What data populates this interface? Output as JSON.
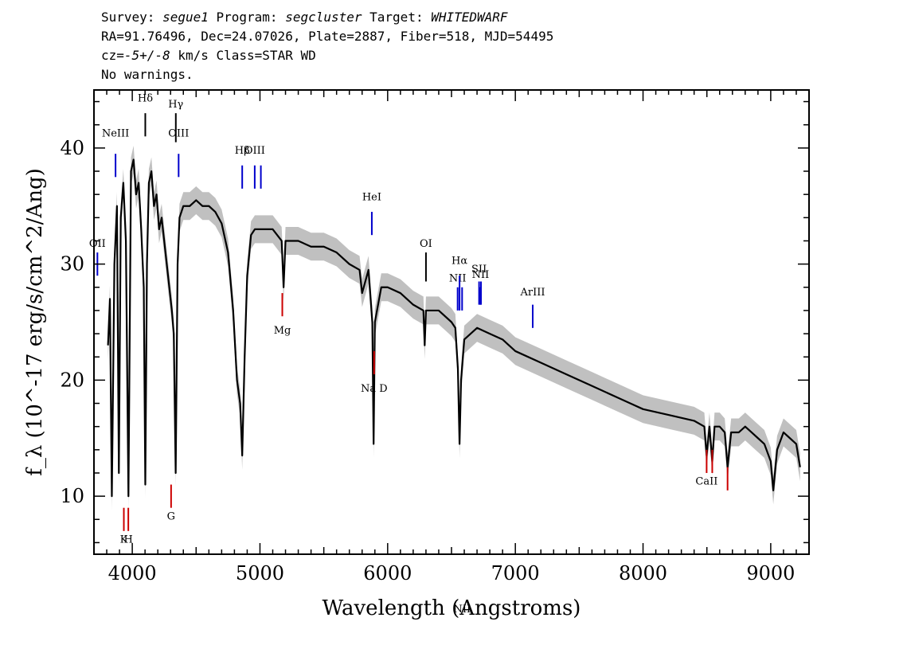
{
  "header": {
    "line1": [
      {
        "t": "Survey: ",
        "i": false
      },
      {
        "t": "segue1",
        "i": true
      },
      {
        "t": " Program: ",
        "i": false
      },
      {
        "t": "segcluster",
        "i": true
      },
      {
        "t": " Target: ",
        "i": false
      },
      {
        "t": "WHITEDWARF",
        "i": true
      }
    ],
    "line2": "RA=91.76496, Dec=24.07026, Plate=2887, Fiber=518, MJD=54495",
    "line3": [
      {
        "t": "cz=",
        "i": false
      },
      {
        "t": "-5+/-8",
        "i": true
      },
      {
        "t": " km/s Class=STAR WD",
        "i": false
      }
    ],
    "line4": "No warnings."
  },
  "chart_data": {
    "type": "line",
    "xlabel": "Wavelength (Angstroms)",
    "ylabel": "f_λ (10^-17 erg/s/cm^2/Ang)",
    "xlim": [
      3700,
      9300
    ],
    "ylim": [
      5,
      45
    ],
    "xticks": [
      4000,
      5000,
      6000,
      7000,
      8000,
      9000
    ],
    "yticks": [
      10,
      20,
      30,
      40
    ],
    "series": [
      {
        "color": "#000000",
        "x": [
          3810,
          3825,
          3840,
          3860,
          3880,
          3895,
          3910,
          3930,
          3950,
          3970,
          3990,
          4010,
          4030,
          4050,
          4070,
          4090,
          4102,
          4115,
          4130,
          4150,
          4170,
          4190,
          4210,
          4230,
          4250,
          4270,
          4290,
          4310,
          4325,
          4340,
          4355,
          4370,
          4400,
          4450,
          4500,
          4550,
          4600,
          4650,
          4700,
          4750,
          4790,
          4820,
          4845,
          4861,
          4880,
          4900,
          4930,
          4960,
          5000,
          5100,
          5170,
          5185,
          5200,
          5300,
          5400,
          5500,
          5600,
          5700,
          5780,
          5800,
          5850,
          5880,
          5890,
          5900,
          5950,
          6000,
          6100,
          6200,
          6280,
          6290,
          6300,
          6400,
          6500,
          6530,
          6550,
          6563,
          6575,
          6600,
          6650,
          6700,
          6800,
          6900,
          7000,
          7200,
          7400,
          7600,
          7800,
          8000,
          8200,
          8400,
          8480,
          8498,
          8520,
          8542,
          8560,
          8600,
          8640,
          8662,
          8690,
          8750,
          8800,
          8850,
          8900,
          8950,
          9000,
          9020,
          9050,
          9100,
          9150,
          9200,
          9230
        ],
        "y": [
          23,
          27,
          10,
          30,
          35,
          12,
          34,
          37,
          32,
          10,
          38,
          39,
          36,
          37,
          33,
          28,
          11,
          30,
          37,
          38,
          35,
          36,
          33,
          34,
          32,
          30,
          28,
          26,
          24,
          12,
          30,
          34,
          35,
          35,
          35.5,
          35,
          35,
          34.5,
          33.5,
          31,
          26,
          20,
          18,
          13.5,
          22,
          29,
          32.5,
          33,
          33,
          33,
          32,
          28,
          32,
          32,
          31.5,
          31.5,
          31,
          30,
          29.5,
          27.5,
          29.5,
          25,
          14.5,
          25,
          28,
          28,
          27.5,
          26.5,
          26,
          23,
          26,
          26,
          25,
          24.5,
          21,
          14.5,
          20,
          23.5,
          24,
          24.5,
          24,
          23.5,
          22.5,
          21.5,
          20.5,
          19.5,
          18.5,
          17.5,
          17,
          16.5,
          16,
          13.5,
          16,
          13,
          16,
          16,
          15.5,
          12.5,
          15.5,
          15.5,
          16,
          15.5,
          15,
          14.5,
          13,
          10.5,
          14,
          15.5,
          15,
          14.5,
          12.5
        ]
      }
    ],
    "emission_lines": [
      {
        "name": "NeIII",
        "wave": 3869,
        "y": [
          37.5,
          39.5
        ],
        "label_y": 41,
        "color": "#0000cc"
      },
      {
        "name": "OII",
        "wave": 3727,
        "y": [
          29,
          31
        ],
        "label_y": 31.5,
        "color": "#0000cc"
      },
      {
        "name": "Hδ",
        "wave": 4102,
        "y": [
          41,
          43
        ],
        "label_y": 44,
        "color": "#000000"
      },
      {
        "name": "Hγ",
        "wave": 4341,
        "y": [
          40.5,
          43
        ],
        "label_y": 43.5,
        "color": "#000000"
      },
      {
        "name": "OIII",
        "wave": 4363,
        "y": [
          37.5,
          39.5
        ],
        "label_y": 41,
        "color": "#0000cc"
      },
      {
        "name": "Hβ",
        "wave": 4861,
        "y": [
          36.5,
          38.5
        ],
        "label_y": 39.5,
        "color": "#0000cc"
      },
      {
        "name": "OIII",
        "wave": 4959,
        "y": [
          36.5,
          38.5
        ],
        "label_y": 39.5,
        "color": "#0000cc"
      },
      {
        "name": "",
        "wave": 5007,
        "y": [
          36.5,
          38.5
        ],
        "label_y": 0,
        "color": "#0000cc"
      },
      {
        "name": "HeI",
        "wave": 5876,
        "y": [
          32.5,
          34.5
        ],
        "label_y": 35.5,
        "color": "#0000cc"
      },
      {
        "name": "OI",
        "wave": 6300,
        "y": [
          28.5,
          31
        ],
        "label_y": 31.5,
        "color": "#000000"
      },
      {
        "name": "NII",
        "wave": 6548,
        "y": [
          26,
          28
        ],
        "label_y": 28.5,
        "color": "#0000cc"
      },
      {
        "name": "Hα",
        "wave": 6563,
        "y": [
          26,
          29
        ],
        "label_y": 30,
        "color": "#0000cc"
      },
      {
        "name": "NII",
        "wave": 6583,
        "y": [
          26,
          28
        ],
        "label_y": 0,
        "color": "#0000cc"
      },
      {
        "name": "SII",
        "wave": 6716,
        "y": [
          26.5,
          28.5
        ],
        "label_y": 29.3,
        "color": "#0000cc"
      },
      {
        "name": "",
        "wave": 6731,
        "y": [
          26.5,
          28.5
        ],
        "label_y": 0,
        "color": "#0000cc"
      },
      {
        "name": "NII",
        "wave": 6727,
        "y": [
          26.5,
          28
        ],
        "label_y": 28.8,
        "color": "#0000cc"
      },
      {
        "name": "ArIII",
        "wave": 7136,
        "y": [
          24.5,
          26.5
        ],
        "label_y": 27.3,
        "color": "#0000cc"
      }
    ],
    "absorption_lines": [
      {
        "name": "K",
        "wave": 3934,
        "y": [
          7,
          9
        ],
        "label_y": 6,
        "color": "#cc0000"
      },
      {
        "name": "H",
        "wave": 3969,
        "y": [
          7,
          9
        ],
        "label_y": 6,
        "color": "#cc0000"
      },
      {
        "name": "G",
        "wave": 4304,
        "y": [
          9,
          11
        ],
        "label_y": 8,
        "color": "#cc0000"
      },
      {
        "name": "Mg",
        "wave": 5175,
        "y": [
          25.5,
          27.5
        ],
        "label_y": 24,
        "color": "#cc0000"
      },
      {
        "name": "Na D",
        "wave": 5894,
        "y": [
          20.5,
          22.5
        ],
        "label_y": 19,
        "color": "#cc0000"
      },
      {
        "name": "CaII",
        "wave": 8498,
        "y": [
          12,
          14
        ],
        "label_y": 11,
        "color": "#cc0000"
      },
      {
        "name": "",
        "wave": 8542,
        "y": [
          12,
          14
        ],
        "label_y": 0,
        "color": "#cc0000"
      },
      {
        "name": "",
        "wave": 8662,
        "y": [
          10.5,
          12.5
        ],
        "label_y": 0,
        "color": "#cc0000"
      }
    ],
    "grid": false,
    "colors": {
      "spectrum": "#000000",
      "error": "#c0c0c0",
      "emission": "#0000cc",
      "absorption": "#cc0000"
    }
  }
}
